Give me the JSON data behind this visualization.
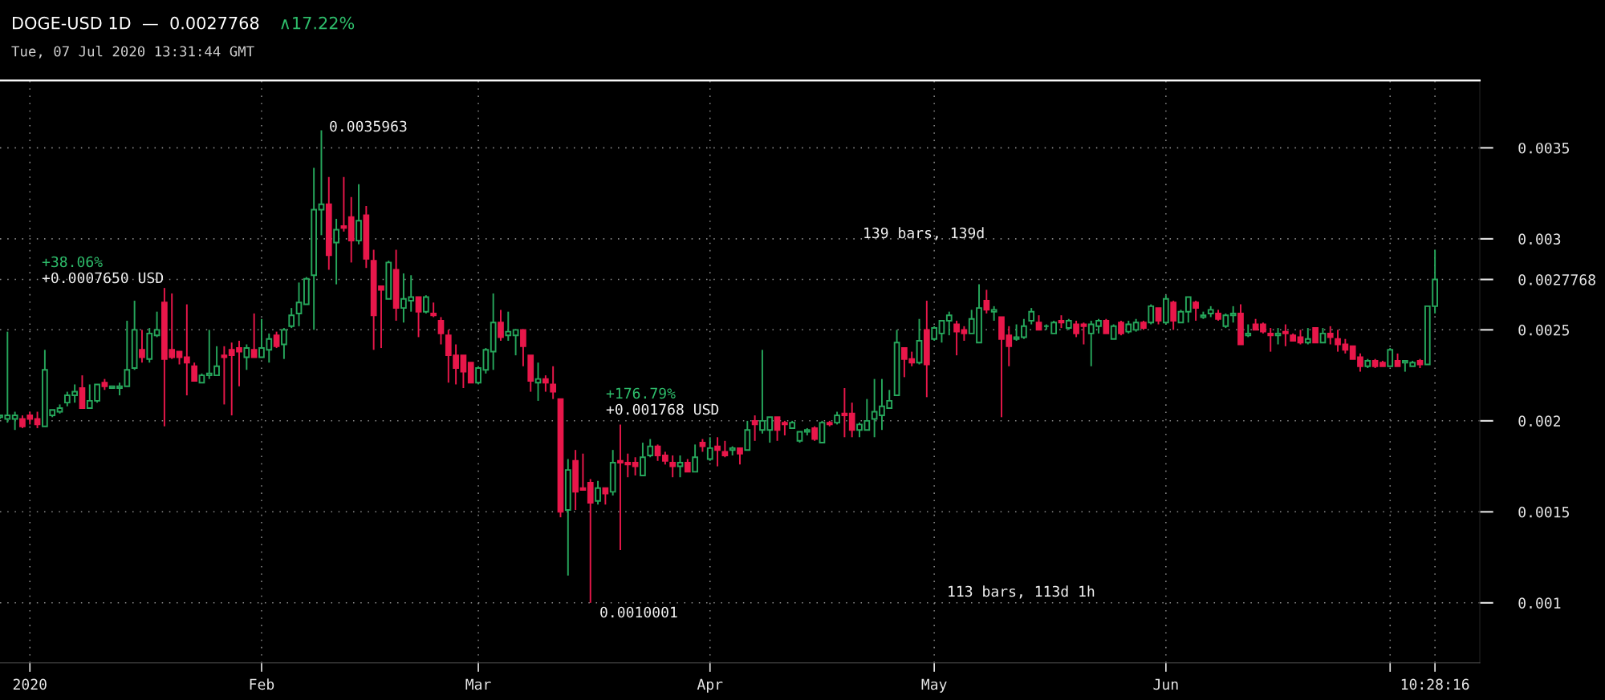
{
  "chart_data": {
    "type": "candlestick",
    "title": "DOGE-USD 1D  —  0.0027768",
    "subtitle": "Tue, 07 Jul 2020 13:31:44 GMT",
    "annotations": [
      "∧17.22%",
      "0.0035963",
      "139 bars, 139d",
      "+38.06%",
      "+0.0007650 USD",
      "+176.79%",
      "+0.001768 USD",
      "113 bars, 113d 1h",
      "0.0010001"
    ],
    "x": [
      "2019-12-28",
      "2019-12-29",
      "2019-12-30",
      "2019-12-31",
      "2020-01-01",
      "2020-01-02",
      "2020-01-03",
      "2020-01-04",
      "2020-01-05",
      "2020-01-06",
      "2020-01-07",
      "2020-01-08",
      "2020-01-09",
      "2020-01-10",
      "2020-01-11",
      "2020-01-12",
      "2020-01-13",
      "2020-01-14",
      "2020-01-15",
      "2020-01-16",
      "2020-01-17",
      "2020-01-18",
      "2020-01-19",
      "2020-01-20",
      "2020-01-21",
      "2020-01-22",
      "2020-01-23",
      "2020-01-24",
      "2020-01-25",
      "2020-01-26",
      "2020-01-27",
      "2020-01-28",
      "2020-01-29",
      "2020-01-30",
      "2020-01-31",
      "2020-02-01",
      "2020-02-02",
      "2020-02-03",
      "2020-02-04",
      "2020-02-05",
      "2020-02-06",
      "2020-02-07",
      "2020-02-08",
      "2020-02-09",
      "2020-02-10",
      "2020-02-11",
      "2020-02-12",
      "2020-02-13",
      "2020-02-14",
      "2020-02-15",
      "2020-02-16",
      "2020-02-17",
      "2020-02-18",
      "2020-02-19",
      "2020-02-20",
      "2020-02-21",
      "2020-02-22",
      "2020-02-23",
      "2020-02-24",
      "2020-02-25",
      "2020-02-26",
      "2020-02-27",
      "2020-02-28",
      "2020-02-29",
      "2020-03-01",
      "2020-03-02",
      "2020-03-03",
      "2020-03-04",
      "2020-03-05",
      "2020-03-06",
      "2020-03-07",
      "2020-03-08",
      "2020-03-09",
      "2020-03-10",
      "2020-03-11",
      "2020-03-12",
      "2020-03-13",
      "2020-03-14",
      "2020-03-15",
      "2020-03-16",
      "2020-03-17",
      "2020-03-18",
      "2020-03-19",
      "2020-03-20",
      "2020-03-21",
      "2020-03-22",
      "2020-03-23",
      "2020-03-24",
      "2020-03-25",
      "2020-03-26",
      "2020-03-27",
      "2020-03-28",
      "2020-03-29",
      "2020-03-30",
      "2020-03-31",
      "2020-04-01",
      "2020-04-02",
      "2020-04-03",
      "2020-04-04",
      "2020-04-05",
      "2020-04-06",
      "2020-04-07",
      "2020-04-08",
      "2020-04-09",
      "2020-04-10",
      "2020-04-11",
      "2020-04-12",
      "2020-04-13",
      "2020-04-14",
      "2020-04-15",
      "2020-04-16",
      "2020-04-17",
      "2020-04-18",
      "2020-04-19",
      "2020-04-20",
      "2020-04-21",
      "2020-04-22",
      "2020-04-23",
      "2020-04-24",
      "2020-04-25",
      "2020-04-26",
      "2020-04-27",
      "2020-04-28",
      "2020-04-29",
      "2020-04-30",
      "2020-05-01",
      "2020-05-02",
      "2020-05-03",
      "2020-05-04",
      "2020-05-05",
      "2020-05-06",
      "2020-05-07",
      "2020-05-08",
      "2020-05-09",
      "2020-05-10",
      "2020-05-11",
      "2020-05-12",
      "2020-05-13",
      "2020-05-14",
      "2020-05-15",
      "2020-05-16",
      "2020-05-17",
      "2020-05-18",
      "2020-05-19",
      "2020-05-20",
      "2020-05-21",
      "2020-05-22",
      "2020-05-23",
      "2020-05-24",
      "2020-05-25",
      "2020-05-26",
      "2020-05-27",
      "2020-05-28",
      "2020-05-29",
      "2020-05-30",
      "2020-05-31",
      "2020-06-01",
      "2020-06-02",
      "2020-06-03",
      "2020-06-04",
      "2020-06-05",
      "2020-06-06",
      "2020-06-07",
      "2020-06-08",
      "2020-06-09",
      "2020-06-10",
      "2020-06-11",
      "2020-06-12",
      "2020-06-13",
      "2020-06-14",
      "2020-06-15",
      "2020-06-16",
      "2020-06-17",
      "2020-06-18",
      "2020-06-19",
      "2020-06-20",
      "2020-06-21",
      "2020-06-22",
      "2020-06-23",
      "2020-06-24",
      "2020-06-25",
      "2020-06-26",
      "2020-06-27",
      "2020-06-28",
      "2020-06-29",
      "2020-06-30",
      "2020-07-01",
      "2020-07-02",
      "2020-07-03",
      "2020-07-04",
      "2020-07-05",
      "2020-07-06",
      "2020-07-07"
    ],
    "ohlc": [
      [
        0.00202,
        0.00203,
        0.00201,
        0.00203
      ],
      [
        0.00201,
        0.00249,
        0.00199,
        0.00203
      ],
      [
        0.00201,
        0.00205,
        0.00195,
        0.00203
      ],
      [
        0.00201,
        0.00203,
        0.00196,
        0.00197
      ],
      [
        0.00203,
        0.00205,
        0.00198,
        0.00201
      ],
      [
        0.00201,
        0.00205,
        0.00196,
        0.00198
      ],
      [
        0.00197,
        0.00239,
        0.00197,
        0.00228
      ],
      [
        0.00203,
        0.00206,
        0.00202,
        0.00206
      ],
      [
        0.00205,
        0.00209,
        0.00204,
        0.00207
      ],
      [
        0.0021,
        0.00216,
        0.00208,
        0.00214
      ],
      [
        0.00214,
        0.0022,
        0.0021,
        0.00216
      ],
      [
        0.00218,
        0.00225,
        0.00207,
        0.00207
      ],
      [
        0.00207,
        0.0022,
        0.00207,
        0.00211
      ],
      [
        0.00211,
        0.0022,
        0.0021,
        0.0022
      ],
      [
        0.00221,
        0.00223,
        0.00217,
        0.00219
      ],
      [
        0.00218,
        0.00219,
        0.00218,
        0.00219
      ],
      [
        0.00218,
        0.00221,
        0.00214,
        0.00219
      ],
      [
        0.00219,
        0.00255,
        0.00219,
        0.00228
      ],
      [
        0.00229,
        0.00266,
        0.00228,
        0.0025
      ],
      [
        0.00239,
        0.0025,
        0.00232,
        0.00235
      ],
      [
        0.00234,
        0.00251,
        0.00232,
        0.00248
      ],
      [
        0.00247,
        0.0026,
        0.00246,
        0.0025
      ],
      [
        0.00265,
        0.00273,
        0.00197,
        0.00234
      ],
      [
        0.00239,
        0.0027,
        0.00234,
        0.00235
      ],
      [
        0.00238,
        0.00238,
        0.00231,
        0.00235
      ],
      [
        0.00235,
        0.00264,
        0.00214,
        0.00232
      ],
      [
        0.0023,
        0.00232,
        0.00222,
        0.00222
      ],
      [
        0.00221,
        0.00226,
        0.00221,
        0.00225
      ],
      [
        0.00225,
        0.0025,
        0.00223,
        0.00226
      ],
      [
        0.00225,
        0.00241,
        0.00225,
        0.0023
      ],
      [
        0.00236,
        0.00241,
        0.00209,
        0.00235
      ],
      [
        0.00239,
        0.00243,
        0.00203,
        0.00236
      ],
      [
        0.0024,
        0.00244,
        0.00219,
        0.00238
      ],
      [
        0.00235,
        0.00242,
        0.00228,
        0.0024
      ],
      [
        0.00239,
        0.00259,
        0.00235,
        0.00235
      ],
      [
        0.00235,
        0.00256,
        0.00235,
        0.0024
      ],
      [
        0.00239,
        0.00248,
        0.00232,
        0.00245
      ],
      [
        0.00247,
        0.00249,
        0.0024,
        0.00241
      ],
      [
        0.00242,
        0.00251,
        0.00234,
        0.0025
      ],
      [
        0.00252,
        0.00262,
        0.00251,
        0.00258
      ],
      [
        0.00259,
        0.00276,
        0.00252,
        0.00265
      ],
      [
        0.00264,
        0.00279,
        0.00264,
        0.00278
      ],
      [
        0.0028,
        0.00339,
        0.0025,
        0.00316
      ],
      [
        0.00316,
        0.0035963,
        0.00302,
        0.00319
      ],
      [
        0.00319,
        0.00334,
        0.00283,
        0.00291
      ],
      [
        0.00298,
        0.00311,
        0.00275,
        0.00305
      ],
      [
        0.00307,
        0.00334,
        0.00304,
        0.00306
      ],
      [
        0.00312,
        0.00323,
        0.00287,
        0.00299
      ],
      [
        0.00299,
        0.0033,
        0.00297,
        0.0031
      ],
      [
        0.00313,
        0.00318,
        0.00284,
        0.00289
      ],
      [
        0.00288,
        0.00294,
        0.00239,
        0.00258
      ],
      [
        0.00274,
        0.00274,
        0.0024,
        0.00272
      ],
      [
        0.00267,
        0.00288,
        0.00267,
        0.00287
      ],
      [
        0.00283,
        0.00294,
        0.00255,
        0.00262
      ],
      [
        0.00262,
        0.00281,
        0.00254,
        0.00267
      ],
      [
        0.00266,
        0.0028,
        0.0026,
        0.00268
      ],
      [
        0.00268,
        0.00268,
        0.00246,
        0.0026
      ],
      [
        0.0026,
        0.00269,
        0.00259,
        0.00268
      ],
      [
        0.00259,
        0.00265,
        0.00257,
        0.00258
      ],
      [
        0.00255,
        0.00257,
        0.00242,
        0.00248
      ],
      [
        0.00247,
        0.0025,
        0.00221,
        0.00236
      ],
      [
        0.00236,
        0.00242,
        0.0022,
        0.00229
      ],
      [
        0.00236,
        0.00236,
        0.00218,
        0.00227
      ],
      [
        0.00232,
        0.00232,
        0.00221,
        0.00221
      ],
      [
        0.00221,
        0.0023,
        0.0022,
        0.00229
      ],
      [
        0.00228,
        0.0024,
        0.00226,
        0.00239
      ],
      [
        0.00238,
        0.0027,
        0.00228,
        0.00254
      ],
      [
        0.00254,
        0.00261,
        0.00244,
        0.00246
      ],
      [
        0.00247,
        0.0026,
        0.00244,
        0.00249
      ],
      [
        0.00247,
        0.0025,
        0.00236,
        0.0025
      ],
      [
        0.0025,
        0.0025,
        0.0023,
        0.00241
      ],
      [
        0.00236,
        0.00236,
        0.00216,
        0.00222
      ],
      [
        0.00221,
        0.00232,
        0.00211,
        0.00223
      ],
      [
        0.00223,
        0.00225,
        0.00216,
        0.00221
      ],
      [
        0.0022,
        0.0023,
        0.00212,
        0.00216
      ],
      [
        0.00212,
        0.00212,
        0.00147,
        0.0015
      ],
      [
        0.00151,
        0.00179,
        0.00115,
        0.00173
      ],
      [
        0.00178,
        0.00184,
        0.00151,
        0.00161
      ],
      [
        0.00163,
        0.00182,
        0.00162,
        0.00162
      ],
      [
        0.00166,
        0.00168,
        0.0010001,
        0.00155
      ],
      [
        0.00156,
        0.00167,
        0.00154,
        0.00163
      ],
      [
        0.00163,
        0.00163,
        0.00154,
        0.0016
      ],
      [
        0.00161,
        0.00184,
        0.00159,
        0.00177
      ],
      [
        0.00178,
        0.00198,
        0.00129,
        0.00177
      ],
      [
        0.00177,
        0.00182,
        0.00169,
        0.00176
      ],
      [
        0.00177,
        0.0018,
        0.0017,
        0.00175
      ],
      [
        0.0017,
        0.00188,
        0.0017,
        0.0018
      ],
      [
        0.00181,
        0.0019,
        0.0018,
        0.00186
      ],
      [
        0.00186,
        0.00187,
        0.00178,
        0.00181
      ],
      [
        0.00181,
        0.00183,
        0.00176,
        0.00178
      ],
      [
        0.00177,
        0.00181,
        0.00169,
        0.00175
      ],
      [
        0.00175,
        0.00181,
        0.00169,
        0.00177
      ],
      [
        0.00177,
        0.00179,
        0.00172,
        0.00172
      ],
      [
        0.00172,
        0.00187,
        0.00172,
        0.0018
      ],
      [
        0.00188,
        0.0019,
        0.00183,
        0.00186
      ],
      [
        0.00179,
        0.00191,
        0.00178,
        0.00185
      ],
      [
        0.00186,
        0.00191,
        0.00175,
        0.00184
      ],
      [
        0.00183,
        0.00189,
        0.0018,
        0.00181
      ],
      [
        0.00184,
        0.00186,
        0.00181,
        0.00185
      ],
      [
        0.00185,
        0.00185,
        0.00176,
        0.00182
      ],
      [
        0.00184,
        0.002,
        0.00184,
        0.00195
      ],
      [
        0.002,
        0.00203,
        0.00189,
        0.00198
      ],
      [
        0.00195,
        0.00239,
        0.00193,
        0.002
      ],
      [
        0.00195,
        0.00202,
        0.00188,
        0.00202
      ],
      [
        0.00202,
        0.00202,
        0.00189,
        0.00195
      ],
      [
        0.00199,
        0.002,
        0.00192,
        0.00198
      ],
      [
        0.00196,
        0.002,
        0.00196,
        0.00199
      ],
      [
        0.00189,
        0.00194,
        0.00188,
        0.00194
      ],
      [
        0.00194,
        0.00196,
        0.00192,
        0.00195
      ],
      [
        0.00196,
        0.00197,
        0.00189,
        0.0019
      ],
      [
        0.00188,
        0.002,
        0.00188,
        0.00199
      ],
      [
        0.00199,
        0.002,
        0.00197,
        0.00198
      ],
      [
        0.00199,
        0.00205,
        0.00198,
        0.00203
      ],
      [
        0.00204,
        0.00218,
        0.00191,
        0.00203
      ],
      [
        0.00204,
        0.0021,
        0.00191,
        0.00195
      ],
      [
        0.00195,
        0.00199,
        0.00191,
        0.00198
      ],
      [
        0.00195,
        0.00212,
        0.00195,
        0.002
      ],
      [
        0.00201,
        0.00223,
        0.00191,
        0.00205
      ],
      [
        0.00203,
        0.00223,
        0.00195,
        0.00208
      ],
      [
        0.00207,
        0.00217,
        0.00207,
        0.00211
      ],
      [
        0.00214,
        0.0025,
        0.00214,
        0.00243
      ],
      [
        0.0024,
        0.0024,
        0.00224,
        0.00234
      ],
      [
        0.00234,
        0.00238,
        0.0023,
        0.00232
      ],
      [
        0.00232,
        0.00256,
        0.00231,
        0.00244
      ],
      [
        0.0025,
        0.00266,
        0.00213,
        0.00231
      ],
      [
        0.00245,
        0.00252,
        0.00244,
        0.00251
      ],
      [
        0.00248,
        0.00255,
        0.00243,
        0.00255
      ],
      [
        0.00255,
        0.0026,
        0.00247,
        0.00258
      ],
      [
        0.00253,
        0.00255,
        0.00236,
        0.00249
      ],
      [
        0.0025,
        0.00252,
        0.00244,
        0.00248
      ],
      [
        0.00248,
        0.00261,
        0.00248,
        0.00256
      ],
      [
        0.00243,
        0.00275,
        0.00243,
        0.00262
      ],
      [
        0.00266,
        0.00272,
        0.00259,
        0.00261
      ],
      [
        0.0026,
        0.00263,
        0.00255,
        0.00261
      ],
      [
        0.00257,
        0.00257,
        0.00202,
        0.00245
      ],
      [
        0.00247,
        0.00252,
        0.0023,
        0.00241
      ],
      [
        0.00245,
        0.00253,
        0.00244,
        0.00246
      ],
      [
        0.00246,
        0.00256,
        0.00245,
        0.00252
      ],
      [
        0.00255,
        0.00262,
        0.00253,
        0.0026
      ],
      [
        0.00254,
        0.00258,
        0.0025,
        0.0025
      ],
      [
        0.00252,
        0.00253,
        0.0025,
        0.00252
      ],
      [
        0.00248,
        0.00255,
        0.00248,
        0.00254
      ],
      [
        0.00255,
        0.00258,
        0.00251,
        0.00254
      ],
      [
        0.00251,
        0.00256,
        0.0025,
        0.00255
      ],
      [
        0.00253,
        0.00255,
        0.00246,
        0.00248
      ],
      [
        0.00253,
        0.00254,
        0.00242,
        0.00252
      ],
      [
        0.00248,
        0.00255,
        0.0023,
        0.00253
      ],
      [
        0.00252,
        0.00256,
        0.00248,
        0.00255
      ],
      [
        0.00255,
        0.00256,
        0.00248,
        0.00248
      ],
      [
        0.00245,
        0.00253,
        0.00245,
        0.00252
      ],
      [
        0.00254,
        0.00255,
        0.00247,
        0.00248
      ],
      [
        0.00249,
        0.00255,
        0.00248,
        0.00253
      ],
      [
        0.0025,
        0.00256,
        0.00249,
        0.00254
      ],
      [
        0.00254,
        0.00255,
        0.0025,
        0.00251
      ],
      [
        0.00254,
        0.00264,
        0.00253,
        0.00263
      ],
      [
        0.00262,
        0.00262,
        0.00253,
        0.00255
      ],
      [
        0.00254,
        0.00269,
        0.00253,
        0.00267
      ],
      [
        0.00265,
        0.00266,
        0.0025,
        0.00255
      ],
      [
        0.00254,
        0.00261,
        0.00254,
        0.0026
      ],
      [
        0.0026,
        0.00268,
        0.00254,
        0.00268
      ],
      [
        0.00265,
        0.00266,
        0.00255,
        0.00262
      ],
      [
        0.00257,
        0.0026,
        0.00256,
        0.00258
      ],
      [
        0.00259,
        0.00263,
        0.00257,
        0.00261
      ],
      [
        0.00259,
        0.00261,
        0.00255,
        0.00256
      ],
      [
        0.00252,
        0.00259,
        0.00251,
        0.00258
      ],
      [
        0.00258,
        0.00263,
        0.00254,
        0.00259
      ],
      [
        0.00259,
        0.00264,
        0.00242,
        0.00242
      ],
      [
        0.00247,
        0.00253,
        0.00246,
        0.00248
      ],
      [
        0.00253,
        0.00256,
        0.0025,
        0.0025
      ],
      [
        0.00253,
        0.00254,
        0.00248,
        0.00249
      ],
      [
        0.00248,
        0.00251,
        0.00238,
        0.00247
      ],
      [
        0.00247,
        0.00251,
        0.00242,
        0.00248
      ],
      [
        0.00249,
        0.00253,
        0.00241,
        0.00248
      ],
      [
        0.00247,
        0.00248,
        0.00244,
        0.00244
      ],
      [
        0.00246,
        0.0025,
        0.00242,
        0.00243
      ],
      [
        0.00243,
        0.00251,
        0.00242,
        0.00245
      ],
      [
        0.00251,
        0.00251,
        0.00243,
        0.00243
      ],
      [
        0.00243,
        0.00251,
        0.00243,
        0.00248
      ],
      [
        0.00248,
        0.00252,
        0.00242,
        0.00246
      ],
      [
        0.00245,
        0.0025,
        0.00238,
        0.00242
      ],
      [
        0.00242,
        0.00245,
        0.00237,
        0.00239
      ],
      [
        0.00241,
        0.00241,
        0.00234,
        0.00234
      ],
      [
        0.00235,
        0.00237,
        0.00227,
        0.0023
      ],
      [
        0.0023,
        0.00234,
        0.00229,
        0.00233
      ],
      [
        0.00233,
        0.00234,
        0.00229,
        0.0023
      ],
      [
        0.00232,
        0.00233,
        0.0023,
        0.0023
      ],
      [
        0.0023,
        0.0024,
        0.0023,
        0.00239
      ],
      [
        0.00233,
        0.00237,
        0.0023,
        0.0023
      ],
      [
        0.00232,
        0.00233,
        0.00227,
        0.00233
      ],
      [
        0.0023,
        0.00233,
        0.0023,
        0.00232
      ],
      [
        0.00233,
        0.00234,
        0.00229,
        0.00231
      ],
      [
        0.00231,
        0.00263,
        0.00231,
        0.00263
      ],
      [
        0.00263,
        0.00294,
        0.00259,
        0.0027768
      ]
    ],
    "colors": [
      "#26a65b",
      "#26a65b",
      "#26a65b",
      "#e8174a",
      "#e8174a",
      "#e8174a",
      "#26a65b",
      "#26a65b",
      "#26a65b",
      "#26a65b",
      "#26a65b",
      "#e8174a",
      "#26a65b",
      "#26a65b",
      "#e8174a",
      "#26a65b",
      "#26a65b",
      "#26a65b",
      "#26a65b",
      "#e8174a",
      "#26a65b",
      "#26a65b",
      "#e8174a",
      "#e8174a",
      "#e8174a",
      "#e8174a",
      "#e8174a",
      "#26a65b",
      "#26a65b",
      "#26a65b",
      "#e8174a",
      "#e8174a",
      "#e8174a",
      "#26a65b",
      "#e8174a",
      "#26a65b",
      "#26a65b",
      "#e8174a",
      "#26a65b",
      "#26a65b",
      "#26a65b",
      "#26a65b",
      "#26a65b",
      "#26a65b",
      "#e8174a",
      "#26a65b",
      "#e8174a",
      "#e8174a",
      "#26a65b",
      "#e8174a",
      "#e8174a",
      "#e8174a",
      "#26a65b",
      "#e8174a",
      "#26a65b",
      "#26a65b",
      "#e8174a",
      "#26a65b",
      "#e8174a",
      "#e8174a",
      "#e8174a",
      "#e8174a",
      "#e8174a",
      "#e8174a",
      "#26a65b",
      "#26a65b",
      "#26a65b",
      "#e8174a",
      "#26a65b",
      "#26a65b",
      "#e8174a",
      "#e8174a",
      "#26a65b",
      "#e8174a",
      "#e8174a",
      "#e8174a",
      "#26a65b",
      "#e8174a",
      "#e8174a",
      "#e8174a",
      "#26a65b",
      "#e8174a",
      "#26a65b",
      "#e8174a",
      "#e8174a",
      "#e8174a",
      "#26a65b",
      "#26a65b",
      "#e8174a",
      "#e8174a",
      "#e8174a",
      "#26a65b",
      "#e8174a",
      "#26a65b",
      "#e8174a",
      "#26a65b",
      "#e8174a",
      "#e8174a",
      "#26a65b",
      "#e8174a",
      "#26a65b",
      "#e8174a",
      "#26a65b",
      "#26a65b",
      "#e8174a",
      "#e8174a",
      "#26a65b",
      "#26a65b",
      "#26a65b",
      "#e8174a",
      "#26a65b",
      "#e8174a",
      "#26a65b",
      "#e8174a",
      "#e8174a",
      "#26a65b",
      "#26a65b",
      "#26a65b",
      "#26a65b",
      "#26a65b",
      "#26a65b",
      "#e8174a",
      "#e8174a",
      "#26a65b",
      "#e8174a",
      "#26a65b",
      "#26a65b",
      "#26a65b",
      "#e8174a",
      "#e8174a",
      "#26a65b",
      "#26a65b",
      "#e8174a",
      "#26a65b",
      "#e8174a",
      "#e8174a",
      "#26a65b",
      "#26a65b",
      "#26a65b",
      "#e8174a",
      "#26a65b",
      "#26a65b",
      "#e8174a",
      "#26a65b",
      "#e8174a",
      "#e8174a",
      "#26a65b",
      "#26a65b",
      "#e8174a",
      "#26a65b",
      "#e8174a",
      "#26a65b",
      "#26a65b",
      "#e8174a",
      "#26a65b",
      "#e8174a",
      "#26a65b",
      "#e8174a",
      "#26a65b",
      "#26a65b",
      "#e8174a",
      "#26a65b",
      "#26a65b",
      "#e8174a",
      "#26a65b",
      "#26a65b",
      "#e8174a",
      "#26a65b",
      "#e8174a",
      "#e8174a",
      "#e8174a",
      "#26a65b",
      "#e8174a",
      "#e8174a",
      "#e8174a",
      "#26a65b",
      "#e8174a",
      "#26a65b",
      "#e8174a",
      "#e8174a",
      "#e8174a",
      "#e8174a",
      "#e8174a",
      "#26a65b",
      "#e8174a",
      "#e8174a",
      "#26a65b",
      "#e8174a",
      "#26a65b",
      "#26a65b",
      "#e8174a",
      "#26a65b",
      "#26a65b"
    ],
    "xlim": [
      "2019-12-28",
      "2020-07-13"
    ],
    "xticks": [
      {
        "value": "2020-01-01",
        "label": "2020"
      },
      {
        "value": "2020-02-01",
        "label": "Feb"
      },
      {
        "value": "2020-03-01",
        "label": "Mar"
      },
      {
        "value": "2020-04-01",
        "label": "Apr"
      },
      {
        "value": "2020-05-01",
        "label": "May"
      },
      {
        "value": "2020-06-01",
        "label": "Jun"
      },
      {
        "value": "2020-07-01",
        "label": null
      },
      {
        "value": "2020-07-07",
        "label": "10:28:16"
      }
    ],
    "ylim": [
      0.00067,
      0.00387
    ],
    "yticks": [
      0.001,
      0.0015,
      0.002,
      0.0025,
      {
        "value": 0.0027768,
        "label": "0.0027768"
      },
      0.003,
      0.0035
    ],
    "grid": true,
    "legend": false
  }
}
